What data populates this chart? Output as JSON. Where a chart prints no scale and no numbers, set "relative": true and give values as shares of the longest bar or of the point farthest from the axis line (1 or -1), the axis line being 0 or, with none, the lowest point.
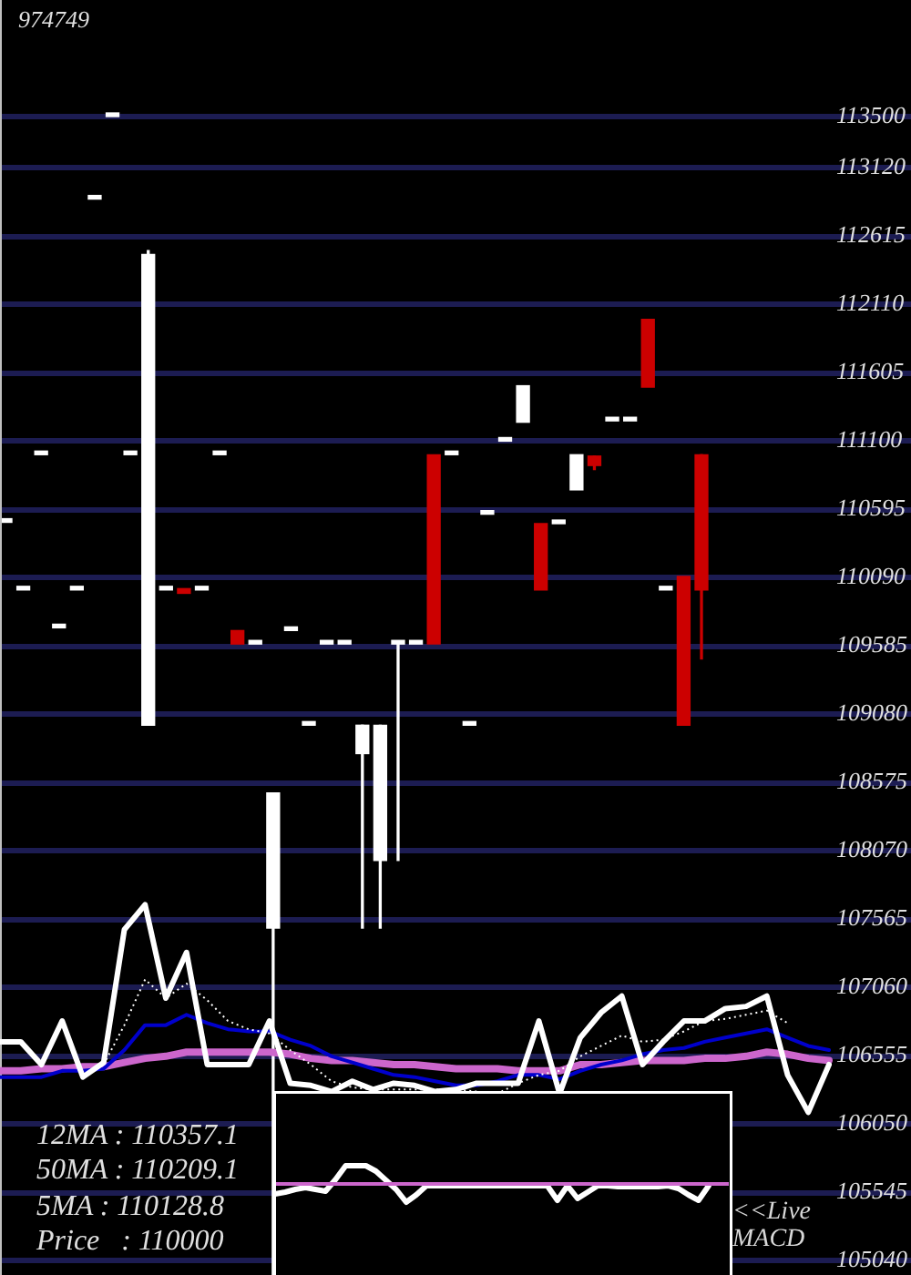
{
  "chart_data": [
    {
      "type": "candlestick",
      "title": "974749",
      "annotations": [
        "12MA : 110357.1",
        "50MA : 110209.1",
        "5MA : 110128.8",
        "Price   : 110000"
      ],
      "categories": [
        null,
        null,
        null,
        null,
        null,
        null,
        null,
        null,
        null,
        null,
        null,
        null,
        null,
        null,
        null,
        null,
        null,
        null,
        null,
        null,
        null,
        null,
        null,
        null,
        null,
        null,
        null,
        null,
        null,
        null,
        null,
        null,
        null,
        null,
        null,
        null,
        null,
        null,
        null,
        null
      ],
      "ohlc": [
        [
          110500,
          110500,
          110500,
          110500
        ],
        [
          110000,
          110000,
          110000,
          110000
        ],
        [
          111000,
          111000,
          111000,
          111000
        ],
        [
          109720,
          109720,
          109720,
          109720
        ],
        [
          110000,
          110000,
          110000,
          110000
        ],
        [
          112890,
          112890,
          112890,
          112890
        ],
        [
          113500,
          113500,
          113500,
          113500
        ],
        [
          111000,
          111000,
          111000,
          111000
        ],
        [
          109000,
          112510,
          109000,
          112480
        ],
        [
          110000,
          110000,
          110000,
          110000
        ],
        [
          110010,
          110010,
          109975,
          109975
        ],
        [
          110000,
          110000,
          110000,
          110000
        ],
        [
          111000,
          111000,
          111000,
          111000
        ],
        [
          109700,
          109700,
          109600,
          109600
        ],
        [
          109600,
          109600,
          109600,
          109600
        ],
        [
          107500,
          108500,
          104940,
          108500
        ],
        [
          109700,
          109700,
          109700,
          109700
        ],
        [
          109000,
          109000,
          109000,
          109000
        ],
        [
          109600,
          109600,
          109600,
          109600
        ],
        [
          109600,
          109600,
          109600,
          109600
        ],
        [
          108790,
          109000,
          107500,
          109000
        ],
        [
          108000,
          109000,
          107500,
          109000
        ],
        [
          109600,
          109600,
          108000,
          109600
        ],
        [
          109600,
          109600,
          109600,
          109600
        ],
        [
          111000,
          111000,
          109600,
          109600
        ],
        [
          111000,
          111000,
          111000,
          111000
        ],
        [
          109000,
          109000,
          109000,
          109000
        ],
        [
          110560,
          110560,
          110560,
          110560
        ],
        [
          111100,
          111100,
          111100,
          111100
        ],
        [
          111240,
          111510,
          111240,
          111510
        ],
        [
          110490,
          110490,
          110000,
          110000
        ],
        [
          110490,
          110490,
          110490,
          110490
        ],
        [
          110740,
          111000,
          110740,
          111000
        ],
        [
          110990,
          110990,
          110890,
          110920
        ],
        [
          111250,
          111250,
          111250,
          111250
        ],
        [
          111250,
          111250,
          111250,
          111250
        ],
        [
          112000,
          112000,
          111500,
          111500
        ],
        [
          110000,
          110000,
          110000,
          110000
        ],
        [
          110100,
          110100,
          109000,
          109000
        ],
        [
          111000,
          111000,
          109490,
          110000
        ]
      ],
      "colors": [
        "#ffffff",
        "#ffffff",
        "#ffffff",
        "#ffffff",
        "#ffffff",
        "#ffffff",
        "#ffffff",
        "#ffffff",
        "#ffffff",
        "#ffffff",
        "#cc0000",
        "#ffffff",
        "#ffffff",
        "#cc0000",
        "#ffffff",
        "#ffffff",
        "#ffffff",
        "#ffffff",
        "#ffffff",
        "#ffffff",
        "#ffffff",
        "#ffffff",
        "#ffffff",
        "#ffffff",
        "#cc0000",
        "#ffffff",
        "#ffffff",
        "#ffffff",
        "#ffffff",
        "#ffffff",
        "#cc0000",
        "#ffffff",
        "#ffffff",
        "#cc0000",
        "#ffffff",
        "#ffffff",
        "#cc0000",
        "#ffffff",
        "#cc0000",
        "#cc0000"
      ],
      "ylim": [
        104935,
        114362
      ],
      "yticks": [
        105040,
        105545,
        106050,
        106555,
        107060,
        107565,
        108070,
        108575,
        109080,
        109585,
        110090,
        110595,
        111100,
        111605,
        112110,
        112615,
        113120,
        113500
      ],
      "grid": "y"
    },
    {
      "type": "line",
      "relative": true,
      "marker": "none",
      "categories": [
        null,
        null,
        null,
        null,
        null,
        null,
        null,
        null,
        null,
        null,
        null,
        null,
        null,
        null,
        null,
        null,
        null,
        null,
        null,
        null,
        null,
        null,
        null,
        null,
        null,
        null,
        null,
        null,
        null,
        null,
        null,
        null,
        null,
        null,
        null,
        null,
        null,
        null,
        null,
        null,
        null
      ],
      "series": [
        {
          "color": "#ffffff",
          "values": [
            0.34,
            0.34,
            0.23,
            0.44,
            0.17,
            0.24,
            0.88,
            1,
            0.55,
            0.77,
            0.23,
            0.23,
            0.23,
            0.44,
            0.14,
            0.13,
            0.1,
            0.15,
            0.11,
            0.14,
            0.13,
            0.1,
            0.11,
            0.14,
            0.14,
            0.14,
            0.44,
            0.09,
            0.36,
            0.48,
            0.56,
            0.23,
            0.34,
            0.44,
            0.44,
            0.5,
            0.51,
            0.56,
            0.18,
            0,
            0.23
          ]
        },
        {
          "color": "#ffffff",
          "line_style": "dotted",
          "values": [
            null,
            null,
            null,
            null,
            null,
            0.23,
            0.42,
            0.64,
            0.55,
            0.62,
            0.54,
            0.44,
            0.4,
            0.38,
            0.3,
            0.23,
            0.15,
            0.12,
            0.11,
            0.11,
            0.11,
            0.11,
            0.11,
            0.1,
            0.09,
            0.14,
            0.18,
            0.2,
            0.27,
            0.32,
            0.37,
            0.34,
            0.35,
            0.39,
            0.44,
            0.45,
            0.47,
            0.49,
            0.43,
            null,
            null
          ]
        },
        {
          "color": "#0000cc",
          "values": [
            0.17,
            0.17,
            0.17,
            0.2,
            0.2,
            0.21,
            0.3,
            0.42,
            0.42,
            0.47,
            0.43,
            0.4,
            0.39,
            0.39,
            0.35,
            0.32,
            0.27,
            0.24,
            0.21,
            0.18,
            0.17,
            0.15,
            0.13,
            0.13,
            0.15,
            0.18,
            0.18,
            0.16,
            0.2,
            0.23,
            0.25,
            0.28,
            0.3,
            0.31,
            0.34,
            0.36,
            0.38,
            0.4,
            0.36,
            0.32,
            0.3
          ]
        },
        {
          "color": "#cc66cc",
          "values": [
            0.2,
            0.2,
            0.21,
            0.21,
            0.22,
            0.22,
            0.24,
            0.26,
            0.27,
            0.29,
            0.29,
            0.29,
            0.29,
            0.29,
            0.28,
            0.26,
            0.25,
            0.25,
            0.24,
            0.23,
            0.23,
            0.22,
            0.21,
            0.21,
            0.21,
            0.2,
            0.2,
            0.2,
            0.23,
            0.23,
            0.24,
            0.25,
            0.25,
            0.25,
            0.26,
            0.26,
            0.27,
            0.29,
            0.28,
            0.26,
            0.25
          ]
        }
      ]
    },
    {
      "type": "line",
      "relative": true,
      "marker": "none",
      "title": "<<Live MACD",
      "categories": [
        null,
        null,
        null,
        null,
        null,
        null,
        null,
        null,
        null,
        null,
        null,
        null,
        null,
        null,
        null,
        null,
        null,
        null,
        null,
        null,
        null,
        null,
        null,
        null,
        null,
        null,
        null,
        null,
        null,
        null,
        null,
        null,
        null,
        null,
        null,
        null,
        null,
        null,
        null,
        null,
        null,
        null,
        null,
        null,
        null,
        null
      ],
      "series": [
        {
          "color": "#ffffff",
          "values": [
            -0.55,
            -0.45,
            -0.3,
            -0.2,
            -0.3,
            -0.4,
            0.25,
            1,
            1,
            1,
            0.7,
            0.2,
            -0.3,
            -1,
            -0.6,
            -0.1,
            -0.1,
            -0.1,
            -0.1,
            -0.1,
            -0.1,
            -0.1,
            -0.1,
            -0.1,
            -0.1,
            -0.1,
            -0.1,
            -0.1,
            -0.9,
            -0.1,
            -0.8,
            -0.45,
            -0.1,
            -0.1,
            -0.15,
            -0.15,
            -0.15,
            -0.15,
            -0.15,
            -0.1,
            -0.25,
            -0.6,
            -0.9,
            -0.1,
            null,
            null
          ]
        }
      ],
      "ref_lines": [
        {
          "axis": "y",
          "value": 0,
          "color": "#cc66cc"
        }
      ]
    }
  ]
}
